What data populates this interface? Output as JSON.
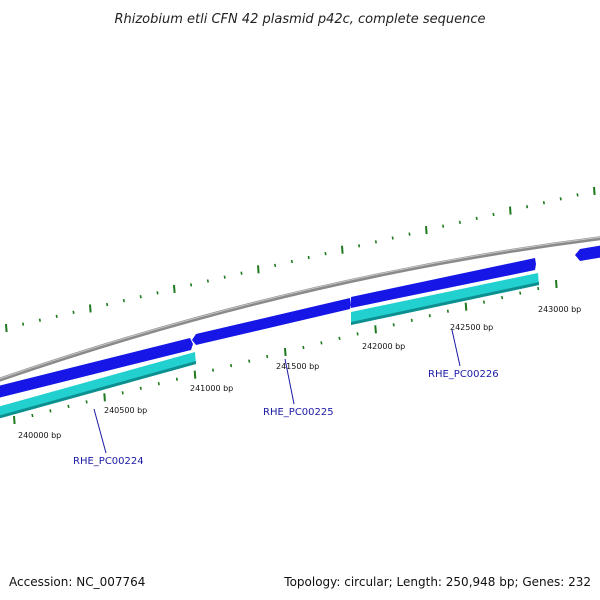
{
  "title": "Rhizobium etli CFN 42 plasmid p42c, complete sequence",
  "footer": {
    "accession": "Accession: NC_007764",
    "summary": "Topology: circular; Length: 250,948 bp; Genes: 232"
  },
  "colors": {
    "backbone": "#8a8a8a",
    "forward_gene": "#1616e6",
    "reverse_gene": "#22d0d0",
    "tick": "#1f7a1f",
    "label": "#1a1aa6"
  },
  "coordinate_labels": [
    "240000 bp",
    "240500 bp",
    "241000 bp",
    "241500 bp",
    "242000 bp",
    "242500 bp",
    "243000 bp"
  ],
  "genes": [
    {
      "name": "RHE_PC00224",
      "strand": "reverse"
    },
    {
      "name": "RHE_PC00225",
      "strand": "forward"
    },
    {
      "name": "RHE_PC00226",
      "strand": "reverse"
    }
  ]
}
